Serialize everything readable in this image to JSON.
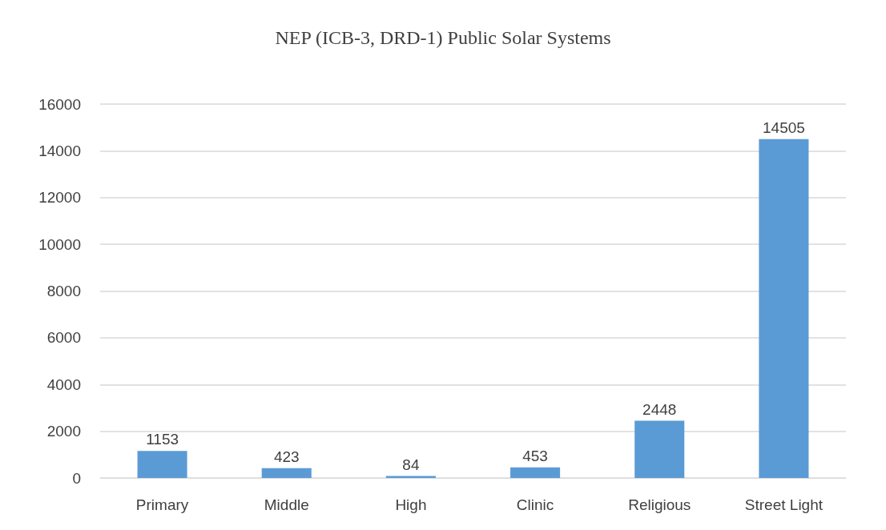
{
  "chart_data": {
    "type": "bar",
    "title": "NEP (ICB-3, DRD-1) Public Solar Systems",
    "categories": [
      "Primary",
      "Middle",
      "High",
      "Clinic",
      "Religious",
      "Street Light"
    ],
    "values": [
      1153,
      423,
      84,
      453,
      2448,
      14505
    ],
    "color": "#5b9bd5",
    "ylim": [
      0,
      16000
    ],
    "yticks": [
      0,
      2000,
      4000,
      6000,
      8000,
      10000,
      12000,
      14000,
      16000
    ],
    "grid": "y",
    "data_labels": true
  }
}
